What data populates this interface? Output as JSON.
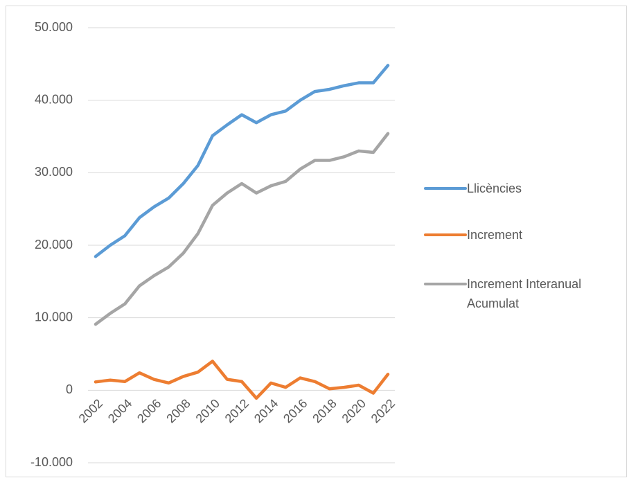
{
  "chart_data": {
    "type": "line",
    "categories": [
      "2002",
      null,
      "2004",
      null,
      "2006",
      null,
      "2008",
      null,
      "2010",
      null,
      "2012",
      null,
      "2014",
      null,
      "2016",
      null,
      "2018",
      null,
      "2020",
      null,
      "2022"
    ],
    "series": [
      {
        "name": "Llicències",
        "color": "#5b9bd5",
        "values": [
          18450,
          20000,
          21300,
          23800,
          25300,
          26500,
          28500,
          31000,
          35100,
          36600,
          38000,
          36900,
          38000,
          38500,
          40000,
          41200,
          41500,
          42000,
          42400,
          42400,
          44800
        ]
      },
      {
        "name": "Increment",
        "color": "#ed7d31",
        "values": [
          1150,
          1400,
          1200,
          2400,
          1500,
          1000,
          1900,
          2500,
          4000,
          1500,
          1200,
          -1100,
          1000,
          400,
          1700,
          1200,
          200,
          400,
          700,
          -400,
          2200
        ]
      },
      {
        "name": "Increment Interanual Acumulat",
        "color": "#a5a5a5",
        "values": [
          9100,
          10600,
          11900,
          14400,
          15800,
          17000,
          18900,
          21600,
          25500,
          27200,
          28500,
          27200,
          28200,
          28800,
          30500,
          31700,
          31700,
          32200,
          33000,
          32800,
          35400
        ]
      }
    ],
    "ylim": [
      -10000,
      50000
    ],
    "yticks": [
      {
        "value": -10000,
        "label": "-10.000"
      },
      0,
      {
        "value": 10000,
        "label": "10.000"
      },
      {
        "value": 20000,
        "label": "20.000"
      },
      {
        "value": 30000,
        "label": "30.000"
      },
      {
        "value": 40000,
        "label": "40.000"
      },
      {
        "value": 50000,
        "label": "50.000"
      }
    ],
    "grid": true,
    "legend": "right"
  }
}
